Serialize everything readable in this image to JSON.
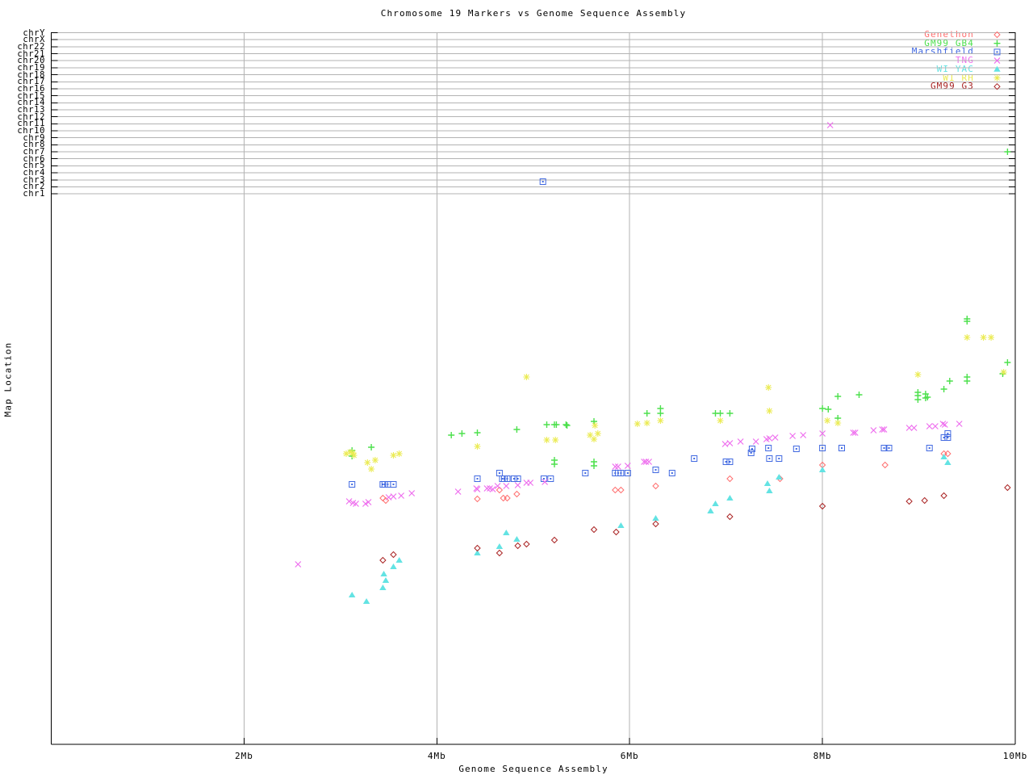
{
  "title": "Chromosome 19 Markers vs Genome Sequence Assembly",
  "xlabel": "Genome Sequence Assembly",
  "ylabel": "Map Location",
  "colors": {
    "grid": "#b3b3b3",
    "axis": "#000000",
    "background": "#ffffff"
  },
  "chart_data": {
    "type": "scatter",
    "title": "Chromosome 19 Markers vs Genome Sequence Assembly",
    "xlabel": "Genome Sequence Assembly",
    "ylabel": "Map Location",
    "legend_position": "top-right",
    "x_axis": {
      "unit": "Mb",
      "range_mb": [
        0,
        10
      ],
      "ticks": [
        {
          "label": "2Mb",
          "mb": 2
        },
        {
          "label": "4Mb",
          "mb": 4
        },
        {
          "label": "6Mb",
          "mb": 6
        },
        {
          "label": "8Mb",
          "mb": 8
        },
        {
          "label": "10Mb",
          "mb": 10
        }
      ],
      "gridlines_mb": [
        2,
        4,
        6,
        8
      ]
    },
    "y_axis": {
      "rows": [
        "chrY",
        "chrX",
        "chr22",
        "chr21",
        "chr20",
        "chr19",
        "chr18",
        "chr17",
        "chr16",
        "chr15",
        "chr14",
        "chr13",
        "chr12",
        "chr11",
        "chr10",
        "chr9",
        "chr8",
        "chr7",
        "chr6",
        "chr5",
        "chr4",
        "chr3",
        "chr2",
        "chr1"
      ],
      "note": "upper band = chromosome rows; lower region = unlabeled chr19 map location, point y stored as screen px"
    },
    "off_row_markers": [
      {
        "series": "TNG",
        "row": "chr11",
        "x_mb": 8.08
      },
      {
        "series": "Marshfield",
        "row": "chr3",
        "x_mb": 5.1
      },
      {
        "series": "GM99 GB4",
        "row": "chr7",
        "x_mb": 9.92
      }
    ],
    "series": [
      {
        "name": "Genethon",
        "color": "#ff6f6f",
        "symbol": "open-diamond",
        "points": [
          [
            3.44,
            617
          ],
          [
            3.47,
            620
          ],
          [
            4.42,
            618
          ],
          [
            4.65,
            607
          ],
          [
            4.69,
            617
          ],
          [
            4.73,
            617
          ],
          [
            4.83,
            612
          ],
          [
            5.85,
            607
          ],
          [
            5.91,
            607
          ],
          [
            6.27,
            602
          ],
          [
            7.04,
            593
          ],
          [
            7.56,
            593
          ],
          [
            8.0,
            576
          ],
          [
            8.65,
            576
          ],
          [
            9.26,
            562
          ],
          [
            9.3,
            562
          ]
        ]
      },
      {
        "name": "GM99 GB4",
        "color": "#4ce04c",
        "symbol": "plus",
        "points": [
          [
            3.12,
            558
          ],
          [
            3.12,
            565
          ],
          [
            3.32,
            554
          ],
          [
            4.15,
            539
          ],
          [
            4.26,
            537
          ],
          [
            4.42,
            536
          ],
          [
            4.83,
            532
          ],
          [
            5.14,
            526
          ],
          [
            5.22,
            526
          ],
          [
            5.24,
            526
          ],
          [
            5.34,
            526
          ],
          [
            5.35,
            527
          ],
          [
            5.22,
            570
          ],
          [
            5.22,
            575
          ],
          [
            5.63,
            522
          ],
          [
            5.63,
            572
          ],
          [
            5.63,
            577
          ],
          [
            6.18,
            512
          ],
          [
            6.32,
            506
          ],
          [
            6.32,
            512
          ],
          [
            6.89,
            512
          ],
          [
            6.94,
            512
          ],
          [
            7.04,
            512
          ],
          [
            8.0,
            506
          ],
          [
            8.06,
            507
          ],
          [
            8.16,
            491
          ],
          [
            8.16,
            518
          ],
          [
            8.38,
            489
          ],
          [
            8.99,
            486
          ],
          [
            8.99,
            490
          ],
          [
            8.99,
            495
          ],
          [
            9.07,
            488
          ],
          [
            9.07,
            493
          ],
          [
            9.09,
            492
          ],
          [
            9.26,
            482
          ],
          [
            9.32,
            472
          ],
          [
            9.5,
            395
          ],
          [
            9.5,
            398
          ],
          [
            9.5,
            467
          ],
          [
            9.5,
            472
          ],
          [
            9.87,
            463
          ],
          [
            9.92,
            449
          ],
          [
            9.92,
            188,
            "chr7"
          ]
        ]
      },
      {
        "name": "Marshfield",
        "color": "#4169e1",
        "symbol": "square-dot",
        "points": [
          [
            3.12,
            600
          ],
          [
            3.44,
            600
          ],
          [
            3.46,
            600
          ],
          [
            3.49,
            600
          ],
          [
            3.55,
            600
          ],
          [
            4.42,
            593
          ],
          [
            4.65,
            586
          ],
          [
            4.68,
            593
          ],
          [
            4.7,
            593
          ],
          [
            4.73,
            593
          ],
          [
            4.8,
            593
          ],
          [
            4.84,
            593
          ],
          [
            5.11,
            593
          ],
          [
            5.18,
            593
          ],
          [
            5.1,
            225,
            "chr3"
          ],
          [
            5.54,
            586
          ],
          [
            5.85,
            586
          ],
          [
            5.88,
            586
          ],
          [
            5.91,
            586
          ],
          [
            5.98,
            586
          ],
          [
            6.27,
            582
          ],
          [
            6.44,
            586
          ],
          [
            6.67,
            568
          ],
          [
            7.0,
            572
          ],
          [
            7.04,
            572
          ],
          [
            7.26,
            561
          ],
          [
            7.27,
            556
          ],
          [
            7.44,
            555
          ],
          [
            7.45,
            568
          ],
          [
            7.55,
            568
          ],
          [
            7.73,
            556
          ],
          [
            8.0,
            555
          ],
          [
            8.2,
            555
          ],
          [
            8.64,
            555
          ],
          [
            8.69,
            555
          ],
          [
            9.11,
            555
          ],
          [
            9.26,
            542
          ],
          [
            9.3,
            542
          ],
          [
            9.3,
            537
          ]
        ]
      },
      {
        "name": "TNG",
        "color": "#ee6fee",
        "symbol": "cross",
        "points": [
          [
            2.56,
            699
          ],
          [
            3.09,
            621
          ],
          [
            3.13,
            623
          ],
          [
            3.16,
            624
          ],
          [
            3.26,
            624
          ],
          [
            3.29,
            622
          ],
          [
            3.5,
            616
          ],
          [
            3.55,
            615
          ],
          [
            3.63,
            614
          ],
          [
            3.74,
            611
          ],
          [
            4.22,
            609
          ],
          [
            4.41,
            605
          ],
          [
            4.42,
            606
          ],
          [
            4.52,
            605
          ],
          [
            4.55,
            605
          ],
          [
            4.58,
            606
          ],
          [
            4.63,
            602
          ],
          [
            4.72,
            602
          ],
          [
            4.84,
            601
          ],
          [
            4.93,
            598
          ],
          [
            4.97,
            598
          ],
          [
            5.12,
            597
          ],
          [
            5.85,
            578
          ],
          [
            5.88,
            578
          ],
          [
            5.98,
            577
          ],
          [
            6.15,
            572
          ],
          [
            6.17,
            572
          ],
          [
            6.2,
            572
          ],
          [
            6.99,
            550
          ],
          [
            7.04,
            549
          ],
          [
            7.15,
            547
          ],
          [
            7.31,
            547
          ],
          [
            7.42,
            544
          ],
          [
            7.45,
            543
          ],
          [
            7.51,
            542
          ],
          [
            7.69,
            540
          ],
          [
            7.8,
            539
          ],
          [
            8.0,
            537
          ],
          [
            8.08,
            155,
            "chr11"
          ],
          [
            8.32,
            536
          ],
          [
            8.34,
            536
          ],
          [
            8.53,
            533
          ],
          [
            8.62,
            532
          ],
          [
            8.64,
            532
          ],
          [
            8.9,
            530
          ],
          [
            8.95,
            530
          ],
          [
            9.11,
            528
          ],
          [
            9.17,
            528
          ],
          [
            9.25,
            525
          ],
          [
            9.27,
            526
          ],
          [
            9.42,
            525
          ]
        ]
      },
      {
        "name": "WI YAC",
        "color": "#63e3e3",
        "symbol": "triangle",
        "points": [
          [
            3.12,
            737
          ],
          [
            3.27,
            745
          ],
          [
            3.44,
            728
          ],
          [
            3.45,
            711
          ],
          [
            3.47,
            719
          ],
          [
            3.55,
            702
          ],
          [
            3.61,
            694
          ],
          [
            4.42,
            685
          ],
          [
            4.65,
            677
          ],
          [
            4.72,
            660
          ],
          [
            4.83,
            668
          ],
          [
            5.91,
            651
          ],
          [
            6.27,
            642
          ],
          [
            6.84,
            633
          ],
          [
            6.89,
            624
          ],
          [
            7.04,
            617
          ],
          [
            7.43,
            599
          ],
          [
            7.45,
            608
          ],
          [
            7.55,
            591
          ],
          [
            8.0,
            582
          ],
          [
            9.26,
            566
          ],
          [
            9.3,
            573
          ]
        ]
      },
      {
        "name": "WI RH",
        "color": "#ebeb55",
        "symbol": "star",
        "points": [
          [
            3.06,
            562
          ],
          [
            3.1,
            560
          ],
          [
            3.13,
            561
          ],
          [
            3.14,
            564
          ],
          [
            3.28,
            573
          ],
          [
            3.32,
            581
          ],
          [
            3.36,
            570
          ],
          [
            3.55,
            564
          ],
          [
            3.61,
            562
          ],
          [
            4.42,
            553
          ],
          [
            4.93,
            467
          ],
          [
            5.14,
            545
          ],
          [
            5.23,
            545
          ],
          [
            5.59,
            539
          ],
          [
            5.63,
            544
          ],
          [
            5.64,
            527
          ],
          [
            5.67,
            537
          ],
          [
            6.08,
            525
          ],
          [
            6.18,
            524
          ],
          [
            6.32,
            521
          ],
          [
            6.94,
            521
          ],
          [
            7.44,
            480
          ],
          [
            7.45,
            509
          ],
          [
            8.05,
            521
          ],
          [
            8.16,
            524
          ],
          [
            8.99,
            464
          ],
          [
            9.5,
            418
          ],
          [
            9.67,
            418
          ],
          [
            9.75,
            418
          ],
          [
            9.88,
            461
          ]
        ]
      },
      {
        "name": "GM99 G3",
        "color": "#aa2424",
        "symbol": "open-diamond",
        "points": [
          [
            3.44,
            694
          ],
          [
            3.55,
            687
          ],
          [
            4.42,
            679
          ],
          [
            4.65,
            685
          ],
          [
            4.84,
            676
          ],
          [
            4.93,
            674
          ],
          [
            5.22,
            669
          ],
          [
            5.63,
            656
          ],
          [
            5.86,
            659
          ],
          [
            6.27,
            649
          ],
          [
            7.04,
            640
          ],
          [
            8.0,
            627
          ],
          [
            8.9,
            621
          ],
          [
            9.06,
            620
          ],
          [
            9.26,
            614
          ],
          [
            9.92,
            604
          ]
        ]
      }
    ]
  }
}
